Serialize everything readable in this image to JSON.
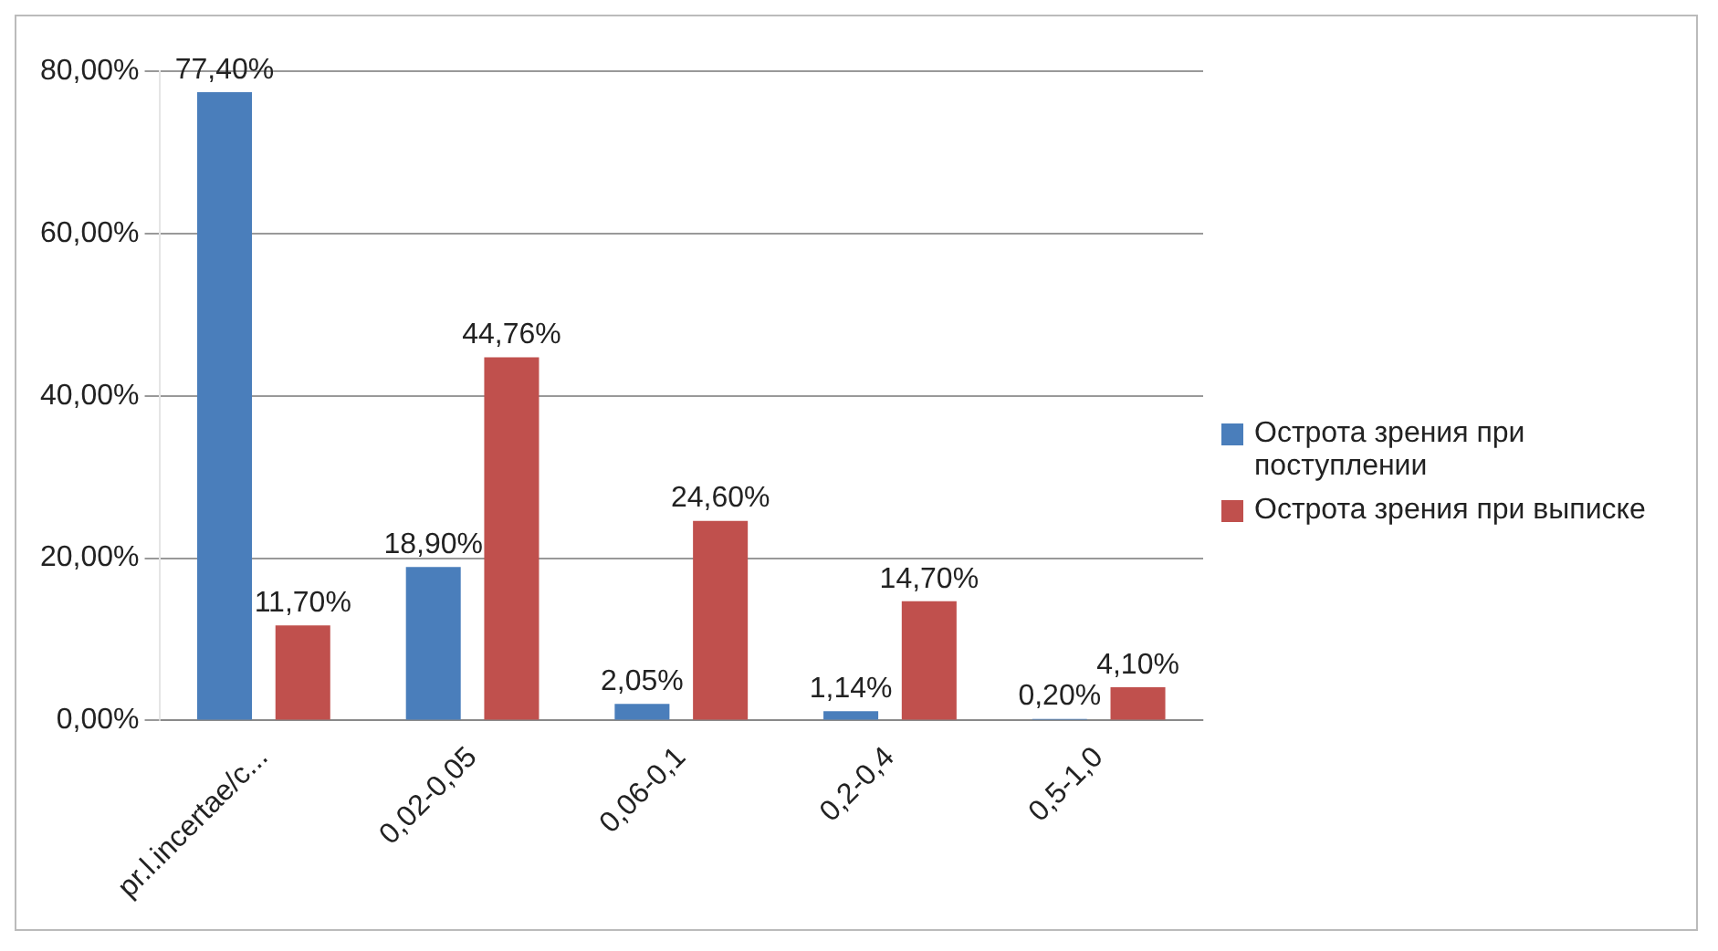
{
  "chart_data": {
    "type": "bar",
    "categories": [
      "pr.l.incertae/c...",
      "0,02-0,05",
      "0,06-0,1",
      "0,2-0,4",
      "0,5-1,0"
    ],
    "series": [
      {
        "name": "Острота зрения при поступлении",
        "color": "#4a7ebb",
        "values": [
          77.4,
          18.9,
          2.05,
          1.14,
          0.2
        ],
        "value_labels": [
          "77,40%",
          "18,90%",
          "2,05%",
          "1,14%",
          "0,20%"
        ]
      },
      {
        "name": "Острота зрения при выписке",
        "color": "#c0504d",
        "values": [
          11.7,
          44.76,
          24.6,
          14.7,
          4.1
        ],
        "value_labels": [
          "11,70%",
          "44,76%",
          "24,60%",
          "14,70%",
          "4,10%"
        ]
      }
    ],
    "ylim": [
      0,
      80
    ],
    "yticks": [
      {
        "value": 0,
        "label": "0,00%"
      },
      {
        "value": 20,
        "label": "20,00%"
      },
      {
        "value": 40,
        "label": "40,00%"
      },
      {
        "value": 60,
        "label": "60,00%"
      },
      {
        "value": 80,
        "label": "80,00%"
      }
    ],
    "grid": "y",
    "legend": "right"
  }
}
